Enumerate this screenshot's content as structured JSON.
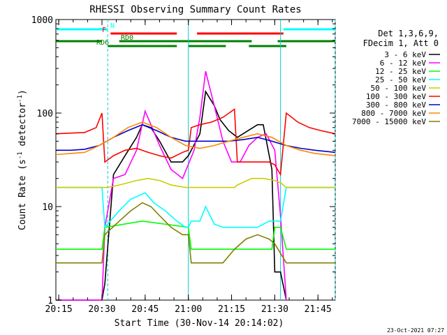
{
  "chart_data": {
    "type": "line",
    "title": "RHESSI Observing Summary Count Rates",
    "xlabel": "Start Time (30-Nov-14 20:14:02)",
    "ylabel_main": "Count Rate (s",
    "ylabel_sup1": "-1",
    "ylabel_mid": " detector",
    "ylabel_sup2": "-1",
    "ylabel_end": ")",
    "x_range_minutes": [
      0,
      97
    ],
    "ylim": [
      1,
      1000
    ],
    "yscale": "log",
    "x_ticks": [
      {
        "label": "20:15",
        "min": 1
      },
      {
        "label": "20:30",
        "min": 16
      },
      {
        "label": "20:45",
        "min": 31
      },
      {
        "label": "21:00",
        "min": 46
      },
      {
        "label": "21:15",
        "min": 61
      },
      {
        "label": "21:30",
        "min": 76
      },
      {
        "label": "21:45",
        "min": 91
      }
    ],
    "y_ticks": [
      {
        "label": "1",
        "v": 1
      },
      {
        "label": "10",
        "v": 10
      },
      {
        "label": "100",
        "v": 100
      },
      {
        "label": "1000",
        "v": 1000
      }
    ],
    "legend_header": [
      "Det 1,3,6,9,",
      "FDecim 1, Att 0"
    ],
    "series": [
      {
        "name": "3 - 6 keV",
        "color": "#000000",
        "x": [
          0,
          16,
          17,
          20,
          24,
          28,
          30,
          33,
          36,
          40,
          44,
          46,
          50,
          52,
          55,
          57,
          60,
          63,
          65,
          70,
          72,
          75,
          76,
          78,
          80
        ],
        "y": [
          1,
          1,
          1.5,
          22,
          35,
          55,
          75,
          70,
          50,
          30,
          30,
          35,
          60,
          170,
          120,
          85,
          65,
          55,
          60,
          75,
          75,
          25,
          2,
          2,
          1
        ]
      },
      {
        "name": "6 - 12 keV",
        "color": "#ff00ff",
        "x": [
          0,
          16,
          17,
          20,
          24,
          28,
          31,
          33,
          36,
          40,
          44,
          48,
          50,
          52,
          55,
          58,
          61,
          64,
          67,
          70,
          73,
          76,
          78,
          80
        ],
        "y": [
          1,
          1,
          6,
          20,
          22,
          40,
          105,
          75,
          45,
          25,
          20,
          40,
          90,
          280,
          120,
          50,
          30,
          30,
          45,
          55,
          60,
          40,
          8,
          1
        ]
      },
      {
        "name": "12 - 25 keV",
        "color": "#00ff00",
        "x": [
          0,
          16,
          17,
          30,
          46,
          47,
          75,
          76,
          78,
          80,
          97
        ],
        "y": [
          3.5,
          3.5,
          6,
          7,
          6,
          3.5,
          3.5,
          6,
          6,
          3.5,
          3.5
        ]
      },
      {
        "name": "25 - 50 keV",
        "color": "#00ffff",
        "x": [
          0,
          16,
          17,
          22,
          26,
          31,
          34,
          38,
          42,
          45,
          46,
          47,
          50,
          52,
          55,
          58,
          61,
          62,
          70,
          74,
          76,
          78,
          80,
          97
        ],
        "y": [
          16,
          16,
          6,
          9,
          12,
          14,
          11,
          9,
          7,
          6,
          6,
          7,
          7,
          10,
          6.5,
          6,
          6,
          6,
          6,
          7,
          7,
          7,
          16,
          16
        ]
      },
      {
        "name": "50 - 100 keV",
        "color": "#cccc00",
        "x": [
          0,
          17,
          18,
          22,
          28,
          32,
          36,
          40,
          45,
          46,
          47,
          62,
          63,
          68,
          72,
          76,
          78,
          80,
          97
        ],
        "y": [
          16,
          16,
          16,
          17,
          19,
          20,
          19,
          17,
          16,
          16,
          16,
          16,
          17,
          20,
          20,
          19,
          18,
          16,
          16
        ]
      },
      {
        "name": "100 - 300 keV",
        "color": "#ff0000",
        "x": [
          0,
          10,
          14,
          16,
          17,
          20,
          24,
          28,
          32,
          36,
          40,
          44,
          46,
          47,
          50,
          54,
          58,
          62,
          63,
          67,
          70,
          74,
          76,
          78,
          80,
          84,
          88,
          92,
          97
        ],
        "y": [
          60,
          62,
          70,
          100,
          30,
          35,
          40,
          42,
          38,
          35,
          33,
          38,
          40,
          70,
          75,
          80,
          90,
          110,
          30,
          30,
          30,
          30,
          28,
          22,
          100,
          80,
          70,
          65,
          60
        ]
      },
      {
        "name": "300 - 800 keV",
        "color": "#0000cc",
        "x": [
          0,
          5,
          10,
          15,
          20,
          25,
          30,
          35,
          40,
          45,
          50,
          55,
          60,
          65,
          70,
          75,
          80,
          85,
          90,
          97
        ],
        "y": [
          40,
          40,
          41,
          45,
          55,
          65,
          75,
          65,
          55,
          50,
          50,
          50,
          50,
          52,
          55,
          50,
          45,
          42,
          40,
          38
        ]
      },
      {
        "name": "800 - 7000 keV",
        "color": "#ff8800",
        "x": [
          0,
          5,
          10,
          15,
          20,
          25,
          30,
          35,
          40,
          45,
          50,
          55,
          60,
          65,
          70,
          75,
          80,
          85,
          90,
          97
        ],
        "y": [
          36,
          37,
          38,
          45,
          55,
          70,
          80,
          70,
          55,
          45,
          42,
          45,
          50,
          55,
          60,
          55,
          45,
          40,
          37,
          35
        ]
      },
      {
        "name": "7000 - 15000 keV",
        "color": "#808000",
        "x": [
          0,
          16,
          17,
          22,
          26,
          30,
          33,
          36,
          40,
          44,
          46,
          47,
          58,
          62,
          66,
          70,
          74,
          76,
          80,
          97
        ],
        "y": [
          2.5,
          2.5,
          5,
          7,
          9,
          11,
          10,
          8,
          6,
          5,
          5,
          2.5,
          2.5,
          3.5,
          4.5,
          5,
          4.5,
          4,
          2.5,
          2.5
        ]
      }
    ],
    "state_bars": [
      {
        "label": "N",
        "color": "#00ffff",
        "segments": [
          [
            0,
            18
          ],
          [
            79,
            97
          ]
        ]
      },
      {
        "label": "F",
        "color": "#ff0000",
        "segments": [
          [
            19,
            42
          ],
          [
            49,
            79
          ]
        ]
      },
      {
        "label": "RD0",
        "color": "#008000",
        "segments": [
          [
            0,
            16
          ],
          [
            22,
            46
          ],
          [
            46,
            68
          ],
          [
            77,
            97
          ]
        ]
      },
      {
        "label": "RD6",
        "color": "#008000",
        "segments": [
          [
            18,
            42
          ],
          [
            46,
            59
          ],
          [
            67,
            80
          ]
        ]
      }
    ],
    "vlines_minutes": [
      18,
      46,
      78,
      97
    ]
  },
  "footer_date": "23-Oct-2021 07:27"
}
